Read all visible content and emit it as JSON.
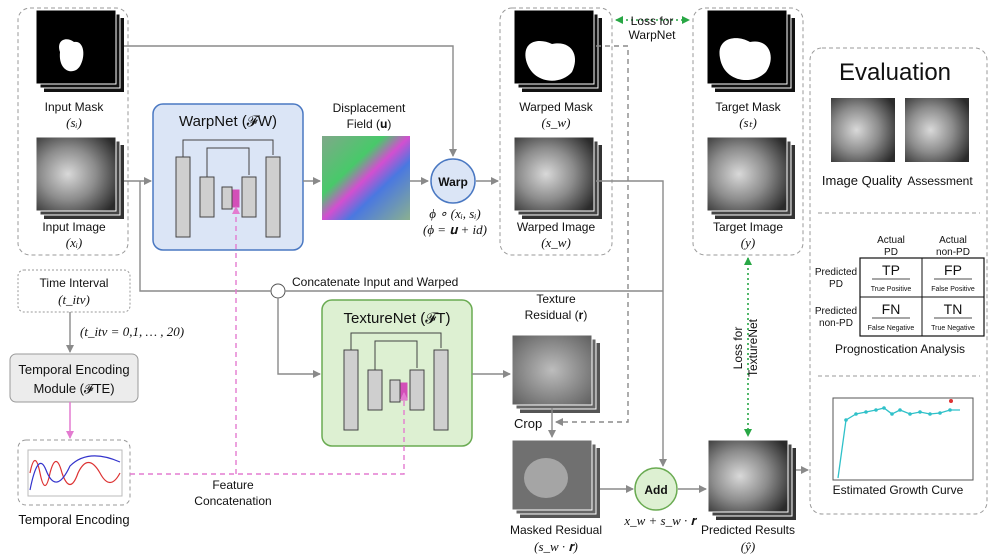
{
  "diagram": {
    "input_mask": {
      "label": "Input Mask",
      "symbol": "(sᵢ)"
    },
    "input_image": {
      "label": "Input Image",
      "symbol": "(xᵢ)"
    },
    "warpnet": {
      "label": "WarpNet (𝓕W)"
    },
    "displacement": {
      "line1": "Displacement",
      "line2": "Field (𝐮)"
    },
    "warp": {
      "label": "Warp",
      "eq1": "ϕ ∘ (xᵢ, sᵢ)",
      "eq2": "(ϕ = 𝐮 + id)"
    },
    "warped_mask": {
      "label": "Warped Mask",
      "symbol": "(s_w)"
    },
    "warped_image": {
      "label": "Warped Image",
      "symbol": "(x_w)"
    },
    "loss_warp": {
      "line1": "Loss for",
      "line2": "WarpNet"
    },
    "target_mask": {
      "label": "Target Mask",
      "symbol": "(sₜ)"
    },
    "target_image": {
      "label": "Target Image",
      "symbol": "(y)"
    },
    "concat_label": "Concatenate Input and Warped",
    "time_interval": {
      "label": "Time Interval",
      "symbol": "(t_itv)"
    },
    "time_values": "(t_itv = 0,1, … , 20)",
    "tem": {
      "line1": "Temporal Encoding",
      "line2": "Module (𝓕TE)"
    },
    "temporal_encoding": "Temporal Encoding",
    "feature_concat": {
      "line1": "Feature",
      "line2": "Concatenation"
    },
    "texturenet": {
      "label": "TextureNet (𝓕T)"
    },
    "texture_residual": {
      "line1": "Texture",
      "line2": "Residual (𝐫)"
    },
    "crop": "Crop",
    "masked_residual": {
      "label": "Masked Residual",
      "symbol": "(s_w · 𝐫)"
    },
    "add": {
      "label": "Add",
      "eq": "x_w + s_w · 𝐫"
    },
    "predicted": {
      "label": "Predicted Results",
      "symbol": "(ŷ)"
    },
    "loss_texture": {
      "line1": "Loss for",
      "line2": "TextureNet"
    },
    "evaluation": {
      "title": "Evaluation",
      "image_quality": "Image Quality",
      "assessment": "Assessment",
      "matrix": {
        "actual_pd_1": "Actual",
        "actual_pd_2": "PD",
        "actual_npd_1": "Actual",
        "actual_npd_2": "non-PD",
        "pred_pd_1": "Predicted",
        "pred_pd_2": "PD",
        "pred_npd_1": "Predicted",
        "pred_npd_2": "non-PD",
        "tp": "TP",
        "tp_sub": "True Positive",
        "fp": "FP",
        "fp_sub": "False Positive",
        "fn": "FN",
        "fn_sub": "False Negative",
        "tn": "TN",
        "tn_sub": "True Negative"
      },
      "prognostication": "Prognostication Analysis",
      "growth_curve": "Estimated Growth Curve"
    }
  },
  "colors": {
    "warpnet_fill": "#dbe5f6",
    "warpnet_stroke": "#4a78c2",
    "texturenet_fill": "#ddf0d2",
    "texturenet_stroke": "#6aab52",
    "pink": "#e37bd0",
    "green_dotted": "#28a745",
    "curve": "#2fc1c9"
  }
}
